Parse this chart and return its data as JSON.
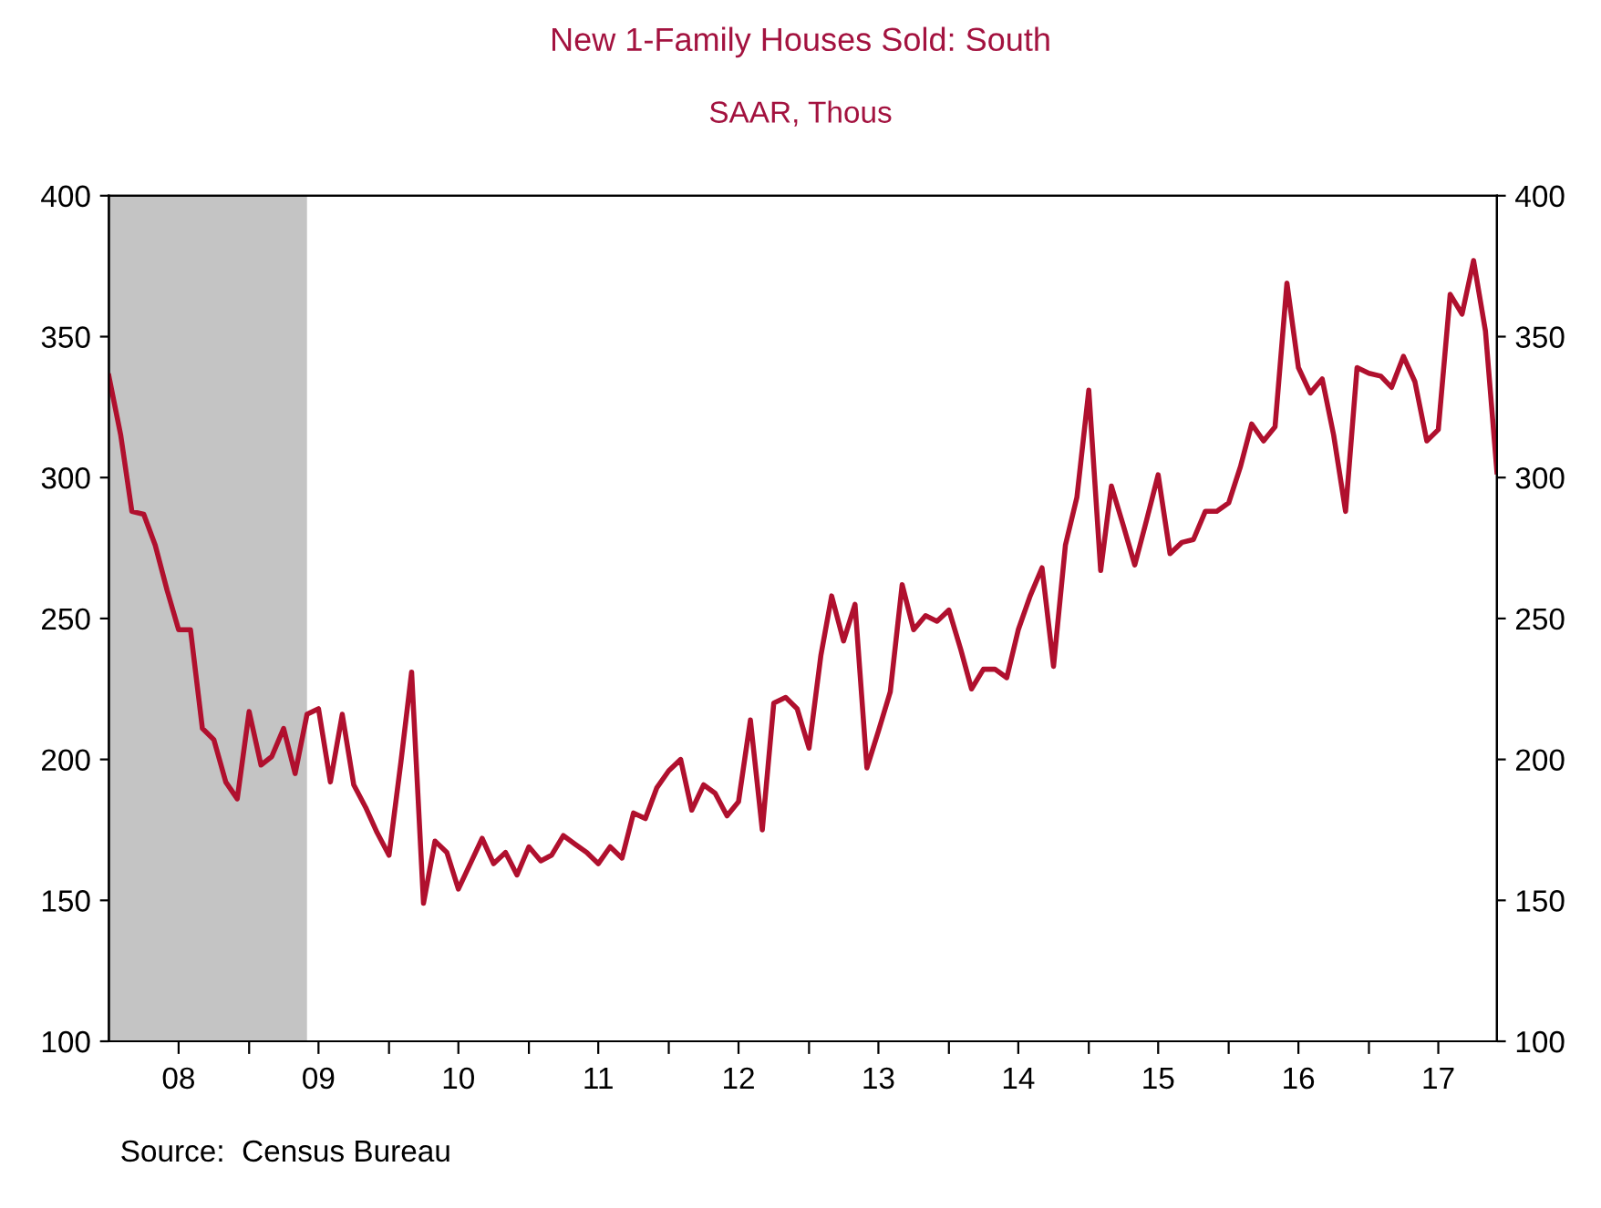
{
  "chart_data": {
    "type": "line",
    "title": "New 1-Family Houses Sold: South",
    "subtitle": "SAAR, Thous",
    "annotations": [
      "Source:  Census Bureau"
    ],
    "x": [
      "2008-01",
      "2008-02",
      "2008-03",
      "2008-04",
      "2008-05",
      "2008-06",
      "2008-07",
      "2008-08",
      "2008-09",
      "2008-10",
      "2008-11",
      "2008-12",
      "2009-01",
      "2009-02",
      "2009-03",
      "2009-04",
      "2009-05",
      "2009-06",
      "2009-07",
      "2009-08",
      "2009-09",
      "2009-10",
      "2009-11",
      "2009-12",
      "2010-01",
      "2010-02",
      "2010-03",
      "2010-04",
      "2010-05",
      "2010-06",
      "2010-07",
      "2010-08",
      "2010-09",
      "2010-10",
      "2010-11",
      "2010-12",
      "2011-01",
      "2011-02",
      "2011-03",
      "2011-04",
      "2011-05",
      "2011-06",
      "2011-07",
      "2011-08",
      "2011-09",
      "2011-10",
      "2011-11",
      "2011-12",
      "2012-01",
      "2012-02",
      "2012-03",
      "2012-04",
      "2012-05",
      "2012-06",
      "2012-07",
      "2012-08",
      "2012-09",
      "2012-10",
      "2012-11",
      "2012-12",
      "2013-01",
      "2013-02",
      "2013-03",
      "2013-04",
      "2013-05",
      "2013-06",
      "2013-07",
      "2013-08",
      "2013-09",
      "2013-10",
      "2013-11",
      "2013-12",
      "2014-01",
      "2014-02",
      "2014-03",
      "2014-04",
      "2014-05",
      "2014-06",
      "2014-07",
      "2014-08",
      "2014-09",
      "2014-10",
      "2014-11",
      "2014-12",
      "2015-01",
      "2015-02",
      "2015-03",
      "2015-04",
      "2015-05",
      "2015-06",
      "2015-07",
      "2015-08",
      "2015-09",
      "2015-10",
      "2015-11",
      "2015-12",
      "2016-01",
      "2016-02",
      "2016-03",
      "2016-04",
      "2016-05",
      "2016-06",
      "2016-07",
      "2016-08",
      "2016-09",
      "2016-10",
      "2016-11",
      "2016-12",
      "2017-01",
      "2017-02",
      "2017-03",
      "2017-04",
      "2017-05",
      "2017-06",
      "2017-07",
      "2017-08",
      "2017-09",
      "2017-10",
      "2017-11",
      "2017-12"
    ],
    "series": [
      {
        "color": "#b0102e",
        "values": [
          336,
          315,
          288,
          287,
          276,
          260,
          246,
          246,
          211,
          207,
          192,
          186,
          217,
          198,
          201,
          211,
          195,
          216,
          218,
          192,
          216,
          191,
          183,
          174,
          166,
          199,
          231,
          149,
          171,
          167,
          154,
          163,
          172,
          163,
          167,
          159,
          169,
          164,
          166,
          173,
          170,
          167,
          163,
          169,
          165,
          181,
          179,
          190,
          196,
          200,
          182,
          191,
          188,
          180,
          185,
          214,
          175,
          220,
          222,
          218,
          204,
          237,
          258,
          242,
          255,
          197,
          210,
          224,
          262,
          246,
          251,
          249,
          253,
          239,
          225,
          232,
          232,
          229,
          246,
          258,
          268,
          233,
          276,
          293,
          331,
          267,
          297,
          283,
          269,
          285,
          301,
          273,
          277,
          278,
          288,
          288,
          291,
          304,
          319,
          313,
          318,
          369,
          339,
          330,
          335,
          315,
          288,
          339,
          337,
          336,
          332,
          343,
          334,
          313,
          317,
          365,
          358,
          377,
          352,
          302
        ]
      }
    ],
    "xlim": [
      "2008-01",
      "2017-12"
    ],
    "xticks": [
      {
        "value": "2008-07-01",
        "label": "08"
      },
      {
        "value": "2009-01-01",
        "label": null
      },
      {
        "value": "2009-07-01",
        "label": "09"
      },
      {
        "value": "2010-01-01",
        "label": null
      },
      {
        "value": "2010-07-01",
        "label": "10"
      },
      {
        "value": "2011-01-01",
        "label": null
      },
      {
        "value": "2011-07-01",
        "label": "11"
      },
      {
        "value": "2012-01-01",
        "label": null
      },
      {
        "value": "2012-07-01",
        "label": "12"
      },
      {
        "value": "2013-01-01",
        "label": null
      },
      {
        "value": "2013-07-01",
        "label": "13"
      },
      {
        "value": "2014-01-01",
        "label": null
      },
      {
        "value": "2014-07-01",
        "label": "14"
      },
      {
        "value": "2015-01-01",
        "label": null
      },
      {
        "value": "2015-07-01",
        "label": "15"
      },
      {
        "value": "2016-01-01",
        "label": null
      },
      {
        "value": "2016-07-01",
        "label": "16"
      },
      {
        "value": "2017-01-01",
        "label": null
      },
      {
        "value": "2017-07-01",
        "label": "17"
      }
    ],
    "ylim": [
      100,
      400
    ],
    "yticks": [
      100,
      150,
      200,
      250,
      300,
      350,
      400
    ],
    "y2lim": [
      100,
      400
    ],
    "y2ticks": [
      100,
      150,
      200,
      250,
      300,
      350,
      400
    ],
    "bands": [
      {
        "axis": "x",
        "from": "2008-01",
        "to": "2009-06",
        "color": "#c4c4c4"
      }
    ],
    "grid": false,
    "marker": "none",
    "line_style": "solid"
  }
}
